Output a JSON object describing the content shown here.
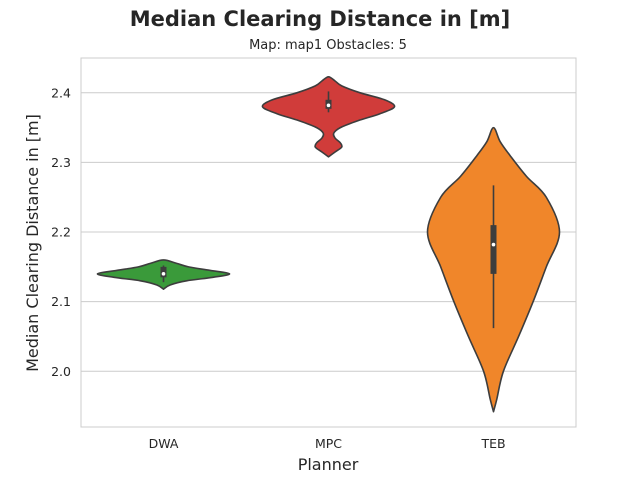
{
  "chart_data": {
    "type": "violin",
    "title": "Median Clearing Distance in [m]",
    "subtitle": "Map: map1 Obstacles: 5",
    "xlabel": "Planner",
    "ylabel": "Median Clearing Distance in [m]",
    "categories": [
      "DWA",
      "MPC",
      "TEB"
    ],
    "ylim": [
      1.92,
      2.45
    ],
    "yticks": [
      2.0,
      2.1,
      2.2,
      2.3,
      2.4
    ],
    "ytick_labels": [
      "2.0",
      "2.1",
      "2.2",
      "2.3",
      "2.4"
    ],
    "grid": true,
    "colors": {
      "DWA": "#3a9a3a",
      "MPC": "#d03c3a",
      "TEB": "#f0862a",
      "outline": "#3d3d3d",
      "grid": "#cccccc",
      "frame": "#cccccc"
    },
    "series": [
      {
        "category": "DWA",
        "min": 2.128,
        "q1": 2.135,
        "median": 2.14,
        "q3": 2.15,
        "max": 2.152,
        "violin_range": [
          2.118,
          2.16
        ],
        "profile": [
          [
            2.118,
            0.0
          ],
          [
            2.124,
            0.1
          ],
          [
            2.13,
            0.35
          ],
          [
            2.135,
            0.75
          ],
          [
            2.14,
            1.0
          ],
          [
            2.145,
            0.7
          ],
          [
            2.15,
            0.38
          ],
          [
            2.155,
            0.2
          ],
          [
            2.16,
            0.0
          ]
        ]
      },
      {
        "category": "MPC",
        "min": 2.372,
        "q1": 2.377,
        "median": 2.382,
        "q3": 2.39,
        "max": 2.402,
        "violin_range": [
          2.308,
          2.423
        ],
        "profile": [
          [
            2.308,
            0.0
          ],
          [
            2.315,
            0.1
          ],
          [
            2.322,
            0.2
          ],
          [
            2.328,
            0.18
          ],
          [
            2.335,
            0.1
          ],
          [
            2.342,
            0.08
          ],
          [
            2.35,
            0.18
          ],
          [
            2.36,
            0.45
          ],
          [
            2.37,
            0.78
          ],
          [
            2.38,
            1.0
          ],
          [
            2.39,
            0.85
          ],
          [
            2.4,
            0.48
          ],
          [
            2.41,
            0.2
          ],
          [
            2.417,
            0.1
          ],
          [
            2.423,
            0.0
          ]
        ]
      },
      {
        "category": "TEB",
        "min": 2.062,
        "q1": 2.14,
        "median": 2.182,
        "q3": 2.21,
        "max": 2.267,
        "violin_range": [
          1.942,
          2.35
        ],
        "profile": [
          [
            1.942,
            0.0
          ],
          [
            1.96,
            0.05
          ],
          [
            2.0,
            0.15
          ],
          [
            2.05,
            0.38
          ],
          [
            2.1,
            0.6
          ],
          [
            2.15,
            0.8
          ],
          [
            2.2,
            1.0
          ],
          [
            2.25,
            0.8
          ],
          [
            2.28,
            0.5
          ],
          [
            2.31,
            0.25
          ],
          [
            2.33,
            0.1
          ],
          [
            2.35,
            0.0
          ]
        ]
      }
    ]
  }
}
